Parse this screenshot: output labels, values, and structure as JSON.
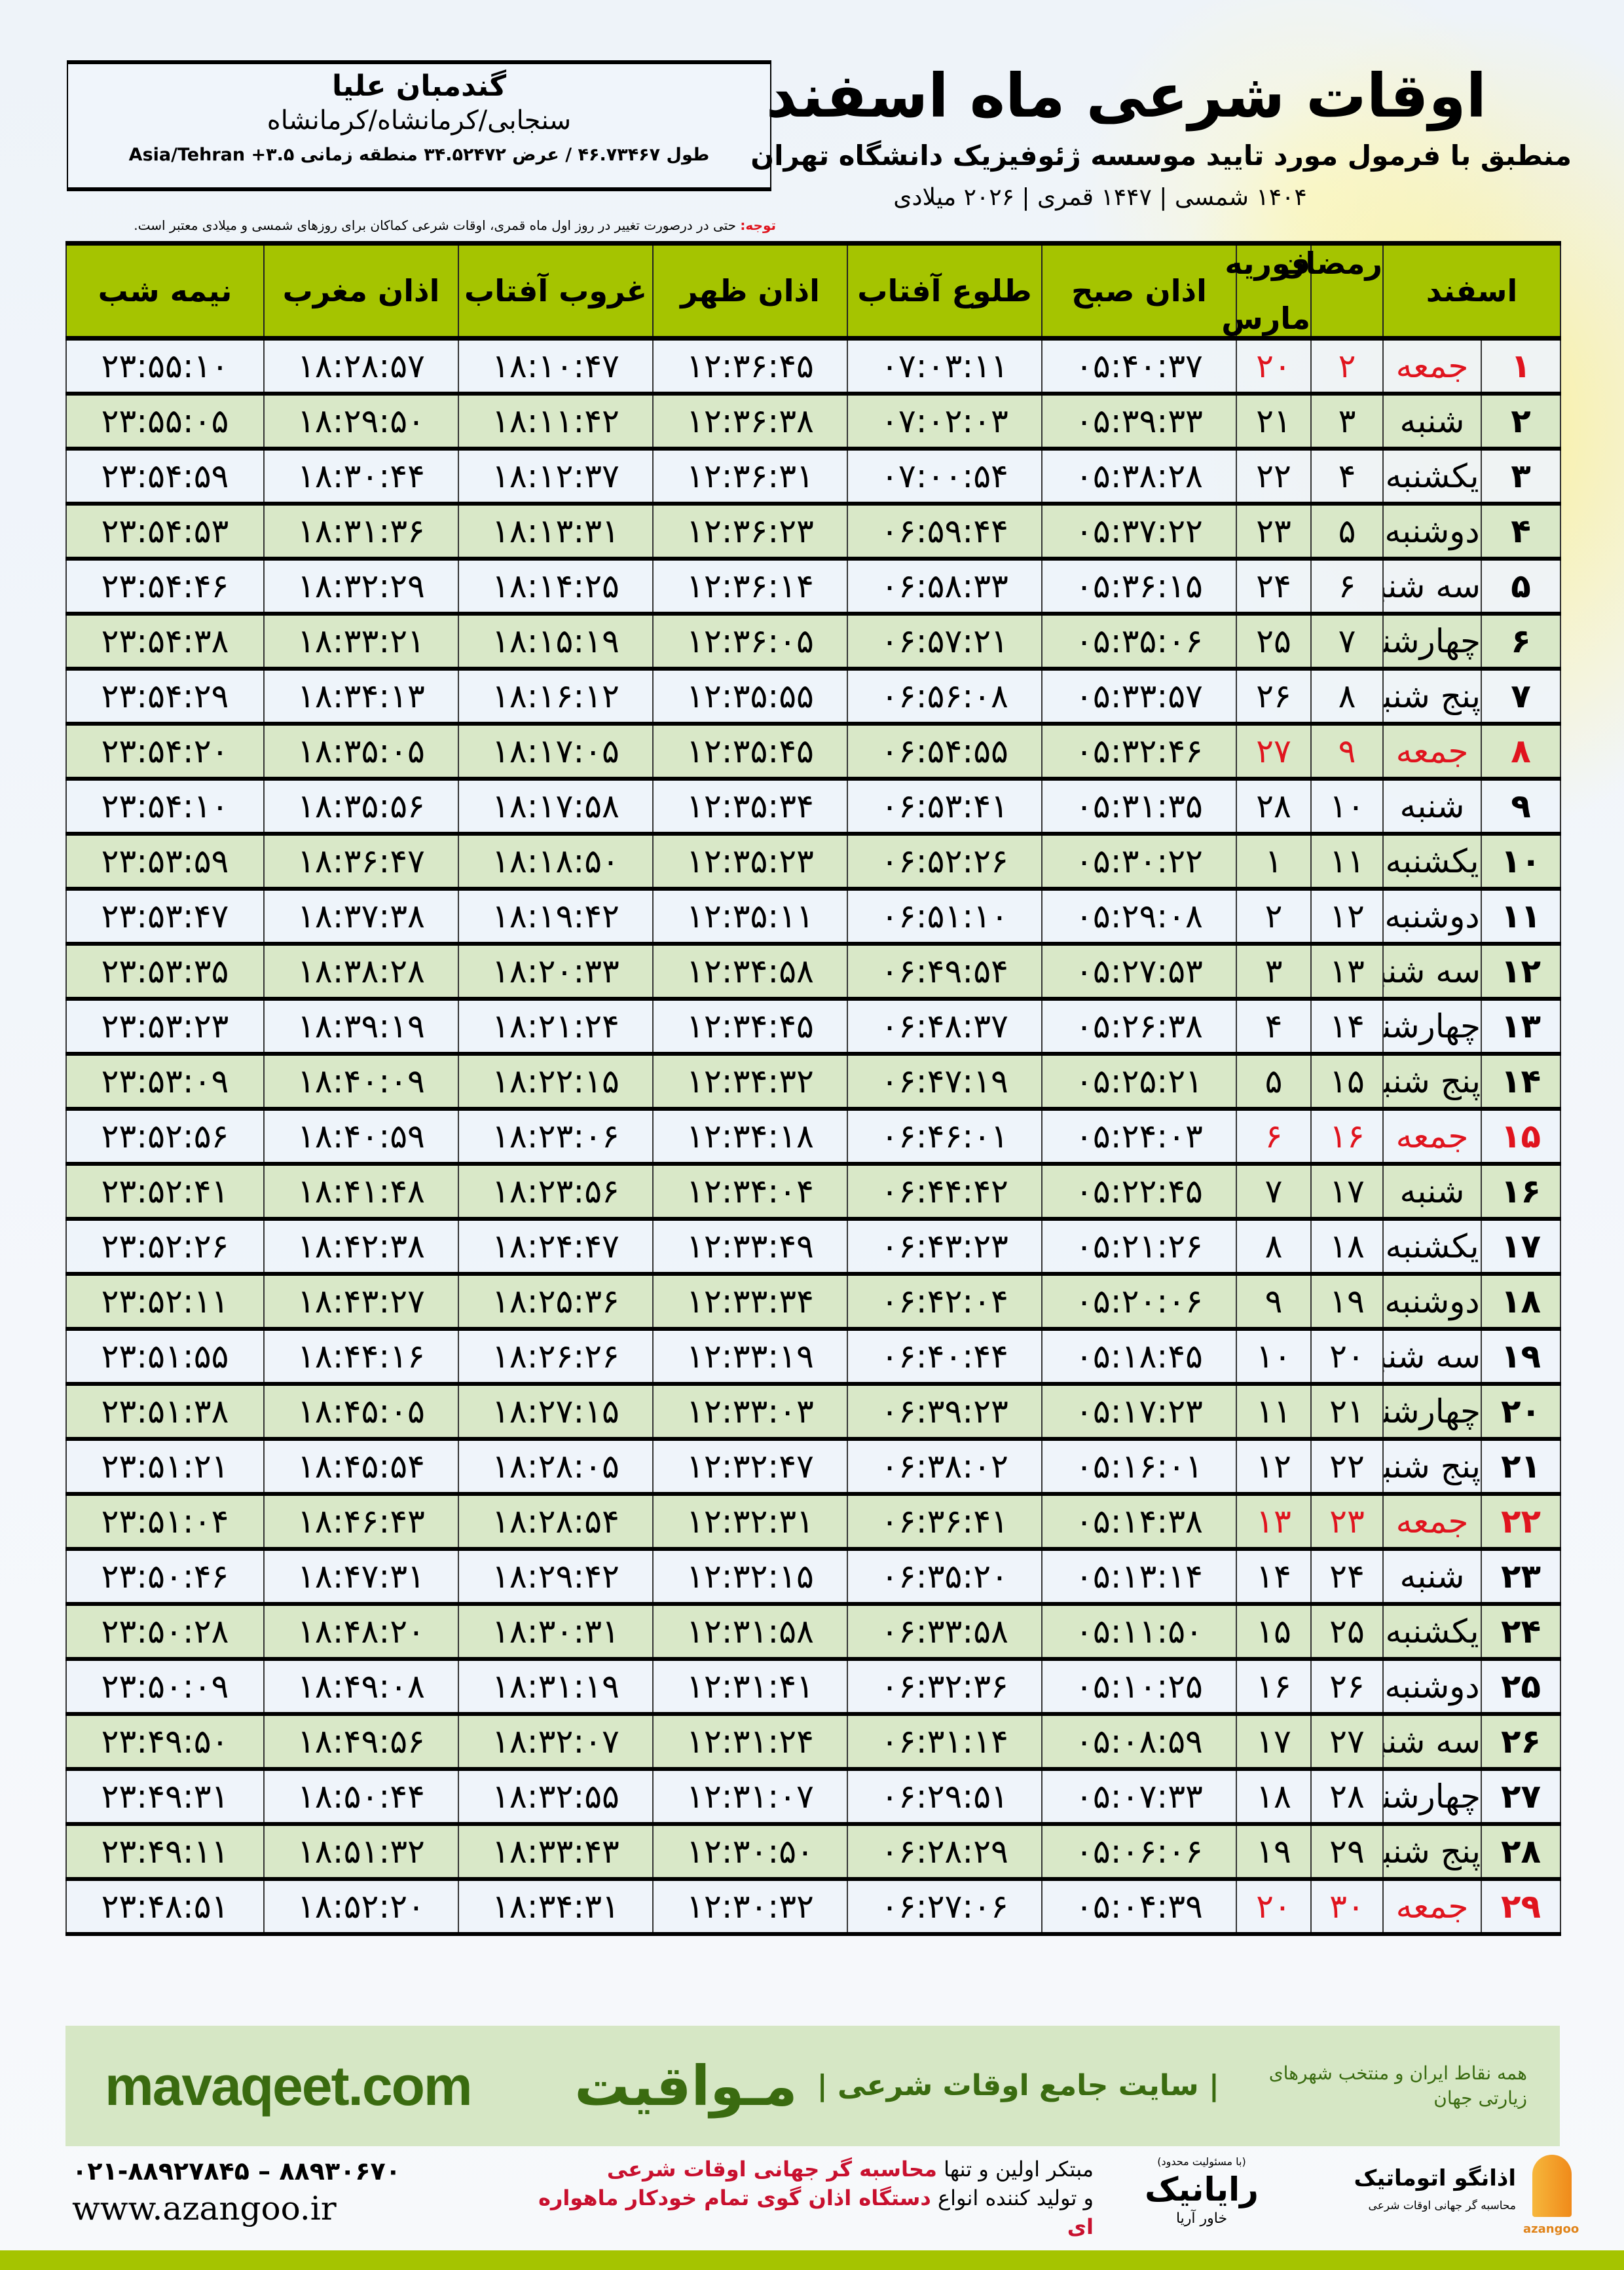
{
  "header": {
    "title": "اوقات شرعی ماه اسفند",
    "subtitle": "منطبق با فرمول مورد تایید موسسه ژئوفیزیک دانشگاه تهران",
    "dateline": "۱۴۰۴ شمسی | ۱۴۴۷ قمری | ۲۰۲۶ میلادی"
  },
  "location": {
    "name": "گندمبان علیا",
    "path": "سنجابی/کرمانشاه/کرمانشاه",
    "coords": "طول ۴۶.۷۳۴۶۷ / عرض ۳۴.۵۲۴۷۲ منطقه زمانی ۳.۵+ Asia/Tehran"
  },
  "note": {
    "label": "توجه:",
    "text": " حتی در درصورت تغییر در روز اول ماه قمری، اوقات شرعی کماکان برای روزهای شمسی و میلادی معتبر است."
  },
  "colors": {
    "header_green": "#a5c400",
    "row_green": "#d9e8c8",
    "friday_red": "#e0141e",
    "brand_green": "#3a6b10"
  },
  "table": {
    "headers": {
      "month": "اسفند",
      "ramadan": "رمضان",
      "miladi_top": "فوریه",
      "miladi_bottom": "مارس",
      "sobh": "اذان صبح",
      "tolu": "طلوع آفتاب",
      "zohr": "اذان ظهر",
      "ghorub": "غروب آفتاب",
      "maghreb": "اذان مغرب",
      "nimeshab": "نیمه شب"
    },
    "friday_label": "جمعه",
    "rows": [
      [
        "۱",
        "جمعه",
        "۲",
        "۲۰",
        "۰۵:۴۰:۳۷",
        "۰۷:۰۳:۱۱",
        "۱۲:۳۶:۴۵",
        "۱۸:۱۰:۴۷",
        "۱۸:۲۸:۵۷",
        "۲۳:۵۵:۱۰"
      ],
      [
        "۲",
        "شنبه",
        "۳",
        "۲۱",
        "۰۵:۳۹:۳۳",
        "۰۷:۰۲:۰۳",
        "۱۲:۳۶:۳۸",
        "۱۸:۱۱:۴۲",
        "۱۸:۲۹:۵۰",
        "۲۳:۵۵:۰۵"
      ],
      [
        "۳",
        "یکشنبه",
        "۴",
        "۲۲",
        "۰۵:۳۸:۲۸",
        "۰۷:۰۰:۵۴",
        "۱۲:۳۶:۳۱",
        "۱۸:۱۲:۳۷",
        "۱۸:۳۰:۴۴",
        "۲۳:۵۴:۵۹"
      ],
      [
        "۴",
        "دوشنبه",
        "۵",
        "۲۳",
        "۰۵:۳۷:۲۲",
        "۰۶:۵۹:۴۴",
        "۱۲:۳۶:۲۳",
        "۱۸:۱۳:۳۱",
        "۱۸:۳۱:۳۶",
        "۲۳:۵۴:۵۳"
      ],
      [
        "۵",
        "سه شنبه",
        "۶",
        "۲۴",
        "۰۵:۳۶:۱۵",
        "۰۶:۵۸:۳۳",
        "۱۲:۳۶:۱۴",
        "۱۸:۱۴:۲۵",
        "۱۸:۳۲:۲۹",
        "۲۳:۵۴:۴۶"
      ],
      [
        "۶",
        "چهارشنبه",
        "۷",
        "۲۵",
        "۰۵:۳۵:۰۶",
        "۰۶:۵۷:۲۱",
        "۱۲:۳۶:۰۵",
        "۱۸:۱۵:۱۹",
        "۱۸:۳۳:۲۱",
        "۲۳:۵۴:۳۸"
      ],
      [
        "۷",
        "پنج شنبه",
        "۸",
        "۲۶",
        "۰۵:۳۳:۵۷",
        "۰۶:۵۶:۰۸",
        "۱۲:۳۵:۵۵",
        "۱۸:۱۶:۱۲",
        "۱۸:۳۴:۱۳",
        "۲۳:۵۴:۲۹"
      ],
      [
        "۸",
        "جمعه",
        "۹",
        "۲۷",
        "۰۵:۳۲:۴۶",
        "۰۶:۵۴:۵۵",
        "۱۲:۳۵:۴۵",
        "۱۸:۱۷:۰۵",
        "۱۸:۳۵:۰۵",
        "۲۳:۵۴:۲۰"
      ],
      [
        "۹",
        "شنبه",
        "۱۰",
        "۲۸",
        "۰۵:۳۱:۳۵",
        "۰۶:۵۳:۴۱",
        "۱۲:۳۵:۳۴",
        "۱۸:۱۷:۵۸",
        "۱۸:۳۵:۵۶",
        "۲۳:۵۴:۱۰"
      ],
      [
        "۱۰",
        "یکشنبه",
        "۱۱",
        "۱",
        "۰۵:۳۰:۲۲",
        "۰۶:۵۲:۲۶",
        "۱۲:۳۵:۲۳",
        "۱۸:۱۸:۵۰",
        "۱۸:۳۶:۴۷",
        "۲۳:۵۳:۵۹"
      ],
      [
        "۱۱",
        "دوشنبه",
        "۱۲",
        "۲",
        "۰۵:۲۹:۰۸",
        "۰۶:۵۱:۱۰",
        "۱۲:۳۵:۱۱",
        "۱۸:۱۹:۴۲",
        "۱۸:۳۷:۳۸",
        "۲۳:۵۳:۴۷"
      ],
      [
        "۱۲",
        "سه شنبه",
        "۱۳",
        "۳",
        "۰۵:۲۷:۵۳",
        "۰۶:۴۹:۵۴",
        "۱۲:۳۴:۵۸",
        "۱۸:۲۰:۳۳",
        "۱۸:۳۸:۲۸",
        "۲۳:۵۳:۳۵"
      ],
      [
        "۱۳",
        "چهارشنبه",
        "۱۴",
        "۴",
        "۰۵:۲۶:۳۸",
        "۰۶:۴۸:۳۷",
        "۱۲:۳۴:۴۵",
        "۱۸:۲۱:۲۴",
        "۱۸:۳۹:۱۹",
        "۲۳:۵۳:۲۳"
      ],
      [
        "۱۴",
        "پنج شنبه",
        "۱۵",
        "۵",
        "۰۵:۲۵:۲۱",
        "۰۶:۴۷:۱۹",
        "۱۲:۳۴:۳۲",
        "۱۸:۲۲:۱۵",
        "۱۸:۴۰:۰۹",
        "۲۳:۵۳:۰۹"
      ],
      [
        "۱۵",
        "جمعه",
        "۱۶",
        "۶",
        "۰۵:۲۴:۰۳",
        "۰۶:۴۶:۰۱",
        "۱۲:۳۴:۱۸",
        "۱۸:۲۳:۰۶",
        "۱۸:۴۰:۵۹",
        "۲۳:۵۲:۵۶"
      ],
      [
        "۱۶",
        "شنبه",
        "۱۷",
        "۷",
        "۰۵:۲۲:۴۵",
        "۰۶:۴۴:۴۲",
        "۱۲:۳۴:۰۴",
        "۱۸:۲۳:۵۶",
        "۱۸:۴۱:۴۸",
        "۲۳:۵۲:۴۱"
      ],
      [
        "۱۷",
        "یکشنبه",
        "۱۸",
        "۸",
        "۰۵:۲۱:۲۶",
        "۰۶:۴۳:۲۳",
        "۱۲:۳۳:۴۹",
        "۱۸:۲۴:۴۷",
        "۱۸:۴۲:۳۸",
        "۲۳:۵۲:۲۶"
      ],
      [
        "۱۸",
        "دوشنبه",
        "۱۹",
        "۹",
        "۰۵:۲۰:۰۶",
        "۰۶:۴۲:۰۴",
        "۱۲:۳۳:۳۴",
        "۱۸:۲۵:۳۶",
        "۱۸:۴۳:۲۷",
        "۲۳:۵۲:۱۱"
      ],
      [
        "۱۹",
        "سه شنبه",
        "۲۰",
        "۱۰",
        "۰۵:۱۸:۴۵",
        "۰۶:۴۰:۴۴",
        "۱۲:۳۳:۱۹",
        "۱۸:۲۶:۲۶",
        "۱۸:۴۴:۱۶",
        "۲۳:۵۱:۵۵"
      ],
      [
        "۲۰",
        "چهارشنبه",
        "۲۱",
        "۱۱",
        "۰۵:۱۷:۲۳",
        "۰۶:۳۹:۲۳",
        "۱۲:۳۳:۰۳",
        "۱۸:۲۷:۱۵",
        "۱۸:۴۵:۰۵",
        "۲۳:۵۱:۳۸"
      ],
      [
        "۲۱",
        "پنج شنبه",
        "۲۲",
        "۱۲",
        "۰۵:۱۶:۰۱",
        "۰۶:۳۸:۰۲",
        "۱۲:۳۲:۴۷",
        "۱۸:۲۸:۰۵",
        "۱۸:۴۵:۵۴",
        "۲۳:۵۱:۲۱"
      ],
      [
        "۲۲",
        "جمعه",
        "۲۳",
        "۱۳",
        "۰۵:۱۴:۳۸",
        "۰۶:۳۶:۴۱",
        "۱۲:۳۲:۳۱",
        "۱۸:۲۸:۵۴",
        "۱۸:۴۶:۴۳",
        "۲۳:۵۱:۰۴"
      ],
      [
        "۲۳",
        "شنبه",
        "۲۴",
        "۱۴",
        "۰۵:۱۳:۱۴",
        "۰۶:۳۵:۲۰",
        "۱۲:۳۲:۱۵",
        "۱۸:۲۹:۴۲",
        "۱۸:۴۷:۳۱",
        "۲۳:۵۰:۴۶"
      ],
      [
        "۲۴",
        "یکشنبه",
        "۲۵",
        "۱۵",
        "۰۵:۱۱:۵۰",
        "۰۶:۳۳:۵۸",
        "۱۲:۳۱:۵۸",
        "۱۸:۳۰:۳۱",
        "۱۸:۴۸:۲۰",
        "۲۳:۵۰:۲۸"
      ],
      [
        "۲۵",
        "دوشنبه",
        "۲۶",
        "۱۶",
        "۰۵:۱۰:۲۵",
        "۰۶:۳۲:۳۶",
        "۱۲:۳۱:۴۱",
        "۱۸:۳۱:۱۹",
        "۱۸:۴۹:۰۸",
        "۲۳:۵۰:۰۹"
      ],
      [
        "۲۶",
        "سه شنبه",
        "۲۷",
        "۱۷",
        "۰۵:۰۸:۵۹",
        "۰۶:۳۱:۱۴",
        "۱۲:۳۱:۲۴",
        "۱۸:۳۲:۰۷",
        "۱۸:۴۹:۵۶",
        "۲۳:۴۹:۵۰"
      ],
      [
        "۲۷",
        "چهارشنبه",
        "۲۸",
        "۱۸",
        "۰۵:۰۷:۳۳",
        "۰۶:۲۹:۵۱",
        "۱۲:۳۱:۰۷",
        "۱۸:۳۲:۵۵",
        "۱۸:۵۰:۴۴",
        "۲۳:۴۹:۳۱"
      ],
      [
        "۲۸",
        "پنج شنبه",
        "۲۹",
        "۱۹",
        "۰۵:۰۶:۰۶",
        "۰۶:۲۸:۲۹",
        "۱۲:۳۰:۵۰",
        "۱۸:۳۳:۴۳",
        "۱۸:۵۱:۳۲",
        "۲۳:۴۹:۱۱"
      ],
      [
        "۲۹",
        "جمعه",
        "۳۰",
        "۲۰",
        "۰۵:۰۴:۳۹",
        "۰۶:۲۷:۰۶",
        "۱۲:۳۰:۳۲",
        "۱۸:۳۴:۳۱",
        "۱۸:۵۲:۲۰",
        "۲۳:۴۸:۵۱"
      ]
    ]
  },
  "banner": {
    "site": "mavaqeet.com",
    "brand": "مـواقیت",
    "tagline": "| سایت جامع اوقات شرعی |",
    "tagline2": "همه نقاط ایران و منتخب شهرهای زیارتی جهان"
  },
  "footer": {
    "phones": "۰۲۱-۸۸۹۲۷۸۴۵ – ۸۸۹۳۰۶۷۰",
    "website": "www.azangoo.ir",
    "line1_a": "مبتکر اولین و تنها ",
    "line1_b": "محاسبه گر جهانی اوقات شرعی",
    "line2_a": "و تولید کننده انواع ",
    "line2_b": "دستگاه اذان گوی تمام خودکار ماهواره ای",
    "rayanik_small": "(با مسئولیت محدود)",
    "rayanik": "رایانیک",
    "rayanik_side": "خاور آریا",
    "azangoo_fa": "اذانگو اتوماتیک",
    "azangoo_sub": "محاسبه گر جهانی اوقات شرعی",
    "azangoo_en": "azangoo"
  }
}
